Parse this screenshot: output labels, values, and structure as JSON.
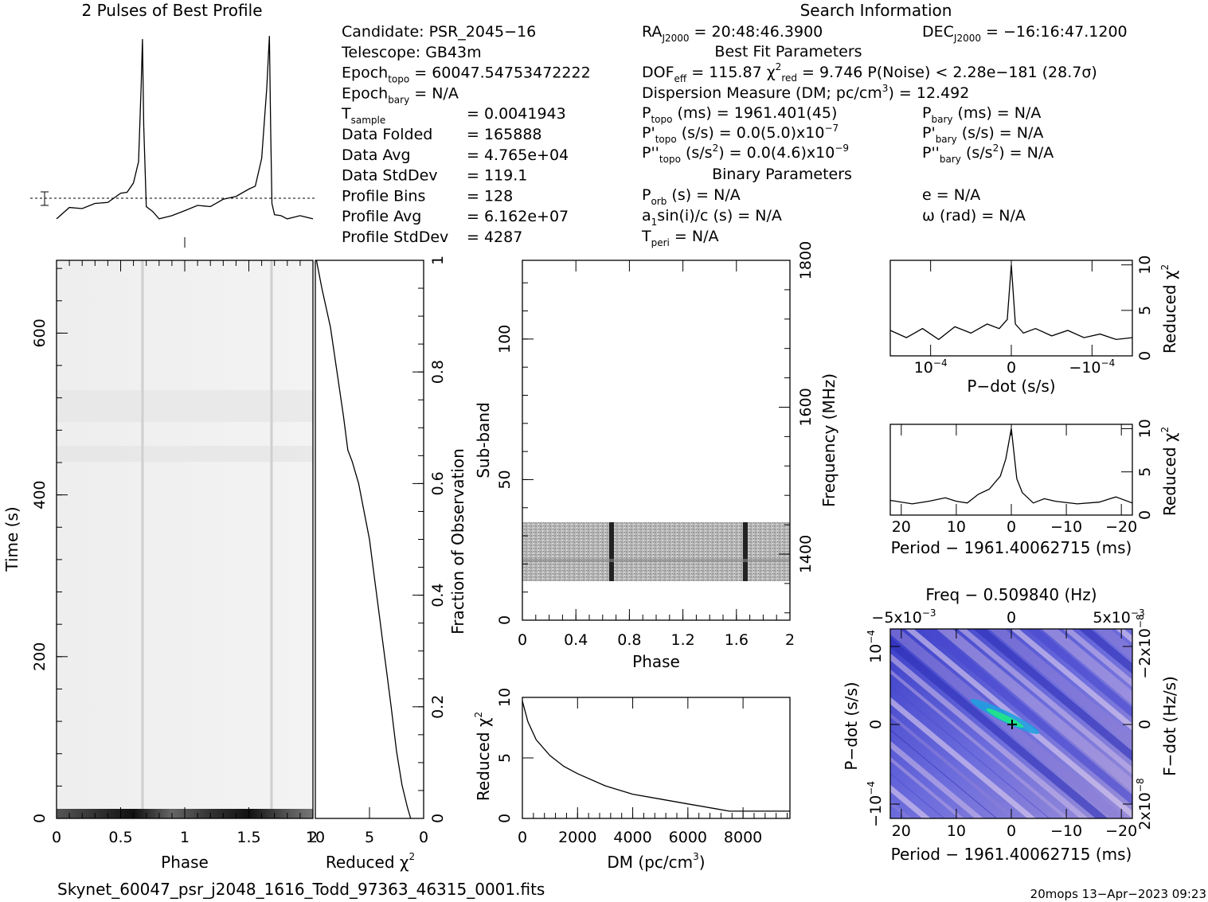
{
  "titles": {
    "profile": "2 Pulses of Best Profile",
    "search": "Search Information",
    "best_fit": "Best Fit Parameters",
    "binary": "Binary Parameters"
  },
  "info_left": [
    {
      "label": "Candidate:  PSR_2045−16"
    },
    {
      "label": "Telescope:  GB43m"
    },
    {
      "label": "Epoch",
      "sub": "topo",
      "value": " = 60047.54753472222"
    },
    {
      "label": "Epoch",
      "sub": "bary",
      "value": " = N/A"
    },
    {
      "label": "T",
      "sub": "sample",
      "value": "=   0.0041943"
    },
    {
      "label": "Data Folded",
      "value": "=   165888"
    },
    {
      "label": "Data Avg",
      "value": "=   4.765e+04"
    },
    {
      "label": "Data StdDev",
      "value": "=   119.1"
    },
    {
      "label": "Profile Bins",
      "value": "=   128"
    },
    {
      "label": "Profile Avg",
      "value": "=   6.162e+07"
    },
    {
      "label": "Profile StdDev",
      "value": "=   4287"
    }
  ],
  "info_mid": {
    "ra": "RA",
    "ra_sub": "J2000",
    "ra_value": " = 20:48:46.3900",
    "dof": "DOF",
    "dof_sub": "eff",
    "dof_value": " = 115.87  χ",
    "chi_sup": "2",
    "chi_sub": "red",
    "chi_value": " = 9.746  P(Noise) < 2.28e−181   (28.7σ)",
    "dm_line": "Dispersion Measure (DM; pc/cm",
    "dm_sup": "3",
    "dm_end": ") = 12.492",
    "ptopo": "P",
    "ptopo_sub": "topo",
    "ptopo_value": " (ms) =  1961.401(45)",
    "pdtopo": "P'",
    "pdtopo_sub": "topo",
    "pdtopo_value": " (s/s) = 0.0(5.0)x10",
    "pdtopo_exp": "−7",
    "pddtopo": "P''",
    "pddtopo_sub": "topo",
    "pddtopo_value": " (s/s",
    "pddtopo_sup": "2",
    "pddtopo_value2": ") = 0.0(4.6)x10",
    "pddtopo_exp": "−9",
    "porb": "P",
    "porb_sub": "orb",
    "porb_value": " (s) = N/A",
    "a1": "a",
    "a1_sub": "1",
    "a1_value": "sin(i)/c (s) = N/A",
    "tperi": "T",
    "tperi_sub": "peri",
    "tperi_value": " = N/A"
  },
  "info_right": {
    "dec": "DEC",
    "dec_sub": "J2000",
    "dec_value": " = −16:16:47.1200",
    "pbary": "P",
    "pbary_sub": "bary",
    "pbary_value": " (ms) = N/A",
    "pdbary": "P'",
    "pdbary_sub": "bary",
    "pdbary_value": " (s/s) = N/A",
    "pddbary": "P''",
    "pddbary_sub": "bary",
    "pddbary_value": " (s/s",
    "pddbary_sup": "2",
    "pddbary_value2": ") = N/A",
    "e": "e = N/A",
    "omega": "ω (rad) = N/A"
  },
  "footer": {
    "filename": "Skynet_60047_psr_j2048_1616_Todd_97363_46315_0001.fits",
    "stamp": "20mops 13−Apr−2023 09:23"
  },
  "chart_data": [
    {
      "id": "profile",
      "type": "line",
      "title": "2 Pulses of Best Profile",
      "x": [
        0.0,
        0.1,
        0.2,
        0.3,
        0.4,
        0.5,
        0.55,
        0.6,
        0.64,
        0.66,
        0.67,
        0.68,
        0.7,
        0.75,
        0.8,
        0.9,
        1.0,
        1.1,
        1.2,
        1.3,
        1.4,
        1.5,
        1.55,
        1.6,
        1.64,
        1.66,
        1.67,
        1.68,
        1.7,
        1.75,
        1.8,
        1.9,
        2.0
      ],
      "values": [
        -0.2,
        0.0,
        0.05,
        0.1,
        0.2,
        0.35,
        0.45,
        0.6,
        1.2,
        3.0,
        4.2,
        2.0,
        0.1,
        -0.1,
        -0.2,
        -0.2,
        0.0,
        0.05,
        0.1,
        0.2,
        0.35,
        0.45,
        0.6,
        1.2,
        3.0,
        4.2,
        2.0,
        0.1,
        -0.1,
        -0.2,
        -0.2,
        -0.2,
        -0.2
      ],
      "errorbar": "left"
    },
    {
      "id": "time-phase",
      "type": "heatmap",
      "xlabel": "Phase",
      "ylabel": "Time (s)",
      "xlim": [
        0,
        2
      ],
      "ylim": [
        0,
        690
      ],
      "xticks": [
        "0",
        "0.5",
        "1",
        "1.5"
      ],
      "yticks": [
        "0",
        "200",
        "400",
        "600"
      ],
      "pulse_phase": [
        0.67,
        1.67
      ]
    },
    {
      "id": "chi-vs-time",
      "type": "line",
      "xlabel": "Reduced χ",
      "xlabel_sup": "2",
      "ylabel": "Fraction of Observation",
      "xlim": [
        10,
        0
      ],
      "ylim": [
        0,
        1
      ],
      "xticks": [
        "10",
        "5",
        "0"
      ],
      "yticks": [
        "0.2",
        "0.4",
        "0.6",
        "0.8",
        "1"
      ],
      "x": [
        1.2,
        1.5,
        2.0,
        2.5,
        3.0,
        3.4,
        3.8,
        4.2,
        4.6,
        5.0,
        5.6,
        6.0,
        6.6,
        7.0,
        7.4,
        8.0,
        8.6,
        9.4,
        9.9
      ],
      "y": [
        0.0,
        0.02,
        0.06,
        0.12,
        0.2,
        0.26,
        0.32,
        0.38,
        0.44,
        0.5,
        0.56,
        0.6,
        0.64,
        0.66,
        0.72,
        0.8,
        0.88,
        0.95,
        1.0
      ]
    },
    {
      "id": "subband-phase",
      "type": "heatmap",
      "xlabel": "Phase",
      "ylabel": "Sub-band",
      "ylabel2": "Frequency (MHz)",
      "xlim": [
        0,
        2
      ],
      "ylim": [
        0,
        128
      ],
      "xticks": [
        "0",
        "0.4",
        "0.8",
        "1.2",
        "1.6",
        "2"
      ],
      "yticks": [
        "0",
        "50",
        "100"
      ],
      "y2ticks": [
        "1400",
        "1600",
        "1800"
      ],
      "band": [
        15,
        35
      ],
      "pulse_phase": [
        0.67,
        1.67
      ]
    },
    {
      "id": "dm-curve",
      "type": "line",
      "xlabel": "DM (pc/cm",
      "xlabel_sup": "3",
      "xlabel_end": ")",
      "ylabel": "Reduced χ",
      "ylabel_sup": "2",
      "xlim": [
        0,
        9700
      ],
      "ylim": [
        0,
        10
      ],
      "xticks": [
        "0",
        "2000",
        "4000",
        "6000",
        "8000"
      ],
      "yticks": [
        "0",
        "5",
        "10"
      ],
      "x": [
        0,
        200,
        500,
        1000,
        1500,
        2000,
        3000,
        4000,
        5000,
        6000,
        7000,
        7500,
        8000,
        9000,
        9700
      ],
      "y": [
        9.7,
        8.0,
        6.5,
        5.2,
        4.3,
        3.7,
        2.7,
        2.0,
        1.6,
        1.2,
        0.8,
        0.6,
        0.6,
        0.6,
        0.6
      ]
    },
    {
      "id": "pdot-curve",
      "type": "line",
      "xlabel": "P−dot (s/s)",
      "ylabel": "Reduced χ",
      "ylabel_sup": "2",
      "xlim": [
        1.5,
        -1.5
      ],
      "ylim": [
        0,
        10
      ],
      "xticks": [
        "10",
        "0",
        "−10"
      ],
      "xticks_exp": [
        "−4",
        "",
        "−4"
      ],
      "yticks": [
        "0",
        "5",
        "10"
      ],
      "x": [
        1.5,
        1.3,
        1.1,
        0.9,
        0.7,
        0.5,
        0.3,
        0.15,
        0.05,
        0.0,
        -0.05,
        -0.15,
        -0.3,
        -0.5,
        -0.7,
        -0.9,
        -1.1,
        -1.3,
        -1.5
      ],
      "y": [
        2.8,
        2.0,
        3.0,
        1.8,
        3.2,
        2.5,
        3.5,
        3.0,
        4.0,
        10.0,
        3.5,
        2.5,
        3.0,
        2.2,
        2.8,
        2.0,
        2.4,
        1.8,
        2.0
      ]
    },
    {
      "id": "period-curve",
      "type": "line",
      "xlabel": "Period − 1961.40062715 (ms)",
      "ylabel": "Reduced χ",
      "ylabel_sup": "2",
      "xlim": [
        22,
        -22
      ],
      "ylim": [
        0,
        10
      ],
      "xticks": [
        "20",
        "10",
        "0",
        "−10",
        "−20"
      ],
      "yticks": [
        "0",
        "5",
        "10"
      ],
      "x": [
        22,
        18,
        15,
        12,
        10,
        8,
        6,
        4,
        2,
        1,
        0,
        -1,
        -2,
        -4,
        -6,
        -8,
        -12,
        -16,
        -19,
        -22
      ],
      "y": [
        1.7,
        1.3,
        1.6,
        2.0,
        1.6,
        1.4,
        2.4,
        3.0,
        4.5,
        6.5,
        10.0,
        4.2,
        2.6,
        1.4,
        1.9,
        1.6,
        1.3,
        1.5,
        2.1,
        1.4
      ]
    },
    {
      "id": "ppdot-plane",
      "type": "heatmap",
      "title": "Freq − 0.509840 (Hz)",
      "xlabel": "Period − 1961.40062715 (ms)",
      "ylabel": "P−dot (s/s)",
      "ylabel2": "F−dot (Hz/s)",
      "xlim": [
        22,
        -22
      ],
      "xticks": [
        "20",
        "10",
        "0",
        "−10",
        "−20"
      ],
      "topticks": [
        "−5x10",
        "0",
        "5x10"
      ],
      "topticks_exp": [
        "−3",
        "",
        "−3"
      ],
      "yticks": [
        "10",
        "0",
        "−10"
      ],
      "yticks_exp": [
        "−4",
        "",
        "−4"
      ],
      "rticks": [
        "−2x10",
        "0",
        "2x10"
      ],
      "rticks_exp": [
        "−8",
        "",
        "−8"
      ],
      "peak": [
        0,
        0
      ]
    }
  ]
}
